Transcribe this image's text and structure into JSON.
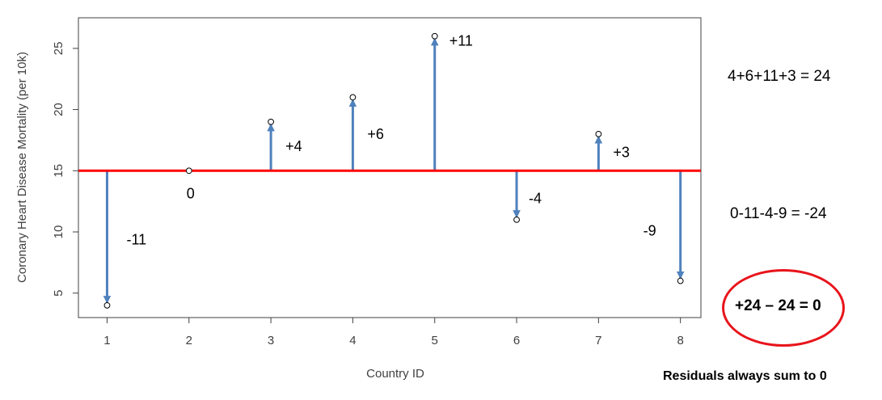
{
  "chart_data": {
    "type": "scatter",
    "xlabel": "Country ID",
    "ylabel": "Coronary Heart Disease Mortality (per 10k)",
    "x": [
      1,
      2,
      3,
      4,
      5,
      6,
      7,
      8
    ],
    "y": [
      4,
      15,
      19,
      21,
      26,
      11,
      18,
      6
    ],
    "mean_line": 15,
    "residual_labels": [
      "-11",
      "0",
      "+4",
      "+6",
      "+11",
      "-4",
      "+3",
      "-9"
    ],
    "xticks": [
      "1",
      "2",
      "3",
      "4",
      "5",
      "6",
      "7",
      "8"
    ],
    "yticks": [
      "5",
      "10",
      "15",
      "20",
      "25"
    ],
    "xlim": [
      0.65,
      8.25
    ],
    "ylim": [
      3,
      27.5
    ],
    "grid": false,
    "colors": {
      "mean_line": "#ff0000",
      "arrows": "#4f81bd",
      "points": "#000000",
      "circle": "#e8141b"
    }
  },
  "annotations": {
    "positive_sum": "4+6+11+3 = 24",
    "negative_sum": "0-11-4-9 = -24",
    "total": "+24 – 24 = 0",
    "conclusion": "Residuals always sum to 0"
  }
}
